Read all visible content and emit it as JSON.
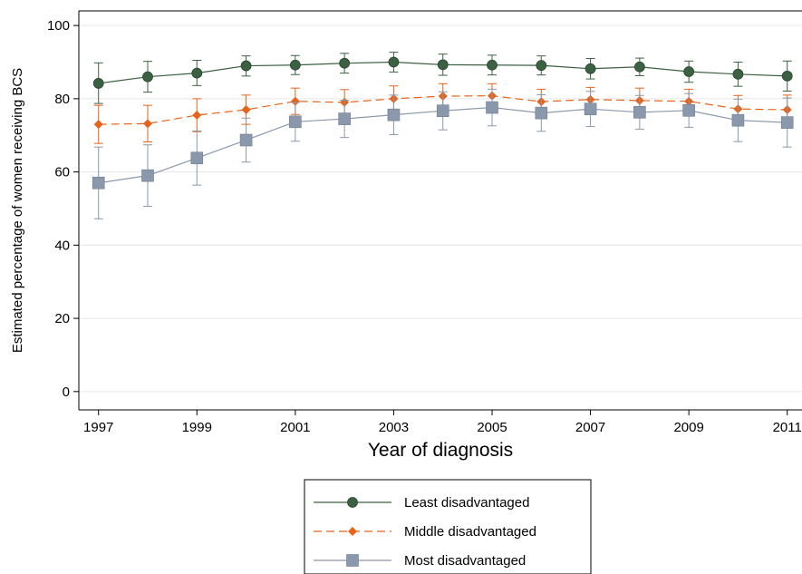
{
  "chart_data": {
    "type": "line",
    "xlabel": "Year of diagnosis",
    "ylabel": "Estimated percentage of women receiving BCS",
    "xlim": [
      1996.6,
      2011.3
    ],
    "ylim": [
      -5,
      104
    ],
    "x_ticks": [
      1997,
      1999,
      2001,
      2003,
      2005,
      2007,
      2009,
      2011
    ],
    "x_tick_labels": [
      "1997",
      "1999",
      "2001",
      "2003",
      "2005",
      "2007",
      "2009",
      "2011"
    ],
    "y_ticks": [
      0,
      20,
      40,
      60,
      80,
      100
    ],
    "y_tick_labels": [
      "0",
      "20",
      "40",
      "60",
      "80",
      "100"
    ],
    "grid": "horizontal",
    "legend_position": "bottom",
    "x": [
      1997,
      1998,
      1999,
      2000,
      2001,
      2002,
      2003,
      2004,
      2005,
      2006,
      2007,
      2008,
      2009,
      2010,
      2011
    ],
    "series": [
      {
        "name": "Least disadvantaged",
        "color": "#3c6142",
        "marker": "circle",
        "line_style": "solid",
        "values": [
          84.2,
          86.0,
          87.0,
          89.0,
          89.2,
          89.7,
          90.0,
          89.3,
          89.2,
          89.1,
          88.2,
          88.7,
          87.4,
          86.7,
          86.2
        ],
        "lower": [
          78.7,
          81.8,
          83.6,
          86.2,
          86.6,
          87.0,
          87.3,
          86.4,
          86.5,
          86.5,
          85.4,
          86.3,
          84.5,
          83.4,
          82.1
        ],
        "upper": [
          89.8,
          90.2,
          90.5,
          91.7,
          91.8,
          92.4,
          92.7,
          92.2,
          91.9,
          91.7,
          91.0,
          91.1,
          90.3,
          90.0,
          90.3
        ]
      },
      {
        "name": "Middle disadvantaged",
        "color": "#e5631b",
        "marker": "diamond",
        "line_style": "dashed",
        "values": [
          73.0,
          73.2,
          75.5,
          77.0,
          79.3,
          79.0,
          80.0,
          80.7,
          80.8,
          79.2,
          79.8,
          79.5,
          79.3,
          77.2,
          77.0
        ],
        "lower": [
          67.8,
          68.2,
          71.0,
          73.0,
          75.7,
          75.5,
          76.5,
          77.3,
          77.5,
          75.8,
          76.5,
          76.1,
          76.0,
          73.5,
          73.0
        ],
        "upper": [
          78.2,
          78.2,
          80.0,
          81.0,
          82.9,
          82.5,
          83.5,
          84.1,
          84.1,
          82.6,
          83.1,
          82.9,
          82.6,
          80.9,
          81.0
        ]
      },
      {
        "name": "Most disadvantaged",
        "color": "#8a98ab",
        "marker": "square",
        "line_style": "solid",
        "values": [
          57.0,
          59.0,
          63.8,
          68.7,
          73.7,
          74.5,
          75.6,
          76.7,
          77.6,
          76.1,
          77.2,
          76.3,
          76.8,
          74.1,
          73.5
        ],
        "lower": [
          47.2,
          50.6,
          56.4,
          62.7,
          68.4,
          69.4,
          70.2,
          71.5,
          72.6,
          71.1,
          72.4,
          71.7,
          72.2,
          68.3,
          66.8
        ],
        "upper": [
          66.8,
          67.4,
          71.2,
          74.7,
          79.0,
          79.6,
          81.0,
          81.9,
          82.6,
          81.1,
          82.0,
          80.9,
          81.4,
          79.9,
          80.2
        ]
      }
    ]
  }
}
